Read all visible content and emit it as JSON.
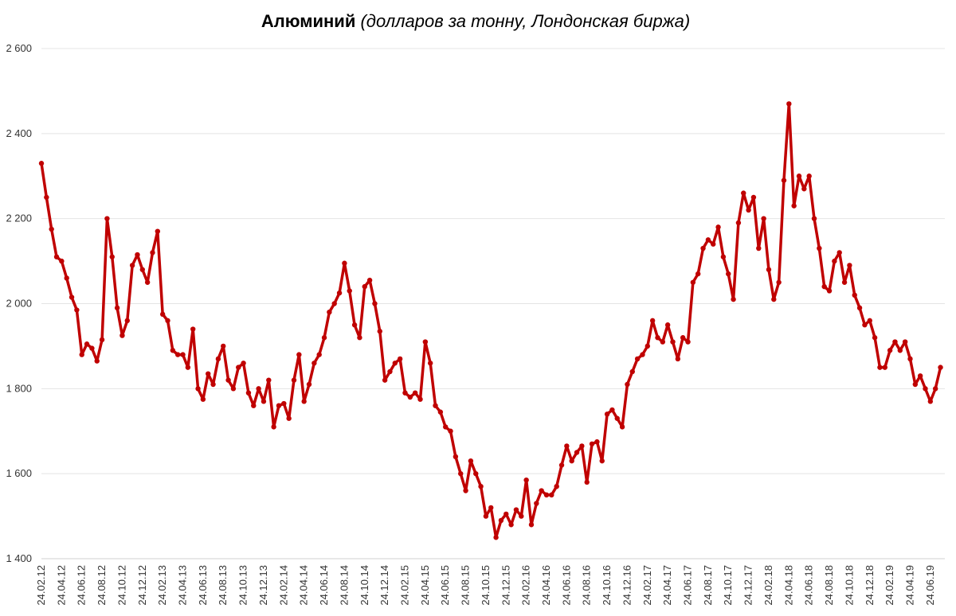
{
  "chart_data": {
    "type": "line",
    "title": "Алюминий",
    "subtitle": "(долларов за тонну, Лондонская биржа)",
    "categories": [
      "24.02.12",
      null,
      null,
      null,
      "24.04.12",
      null,
      null,
      null,
      "24.06.12",
      null,
      null,
      null,
      "24.08.12",
      null,
      null,
      null,
      "24.10.12",
      null,
      null,
      null,
      "24.12.12",
      null,
      null,
      null,
      "24.02.13",
      null,
      null,
      null,
      "24.04.13",
      null,
      null,
      null,
      "24.06.13",
      null,
      null,
      null,
      "24.08.13",
      null,
      null,
      null,
      "24.10.13",
      null,
      null,
      null,
      "24.12.13",
      null,
      null,
      null,
      "24.02.14",
      null,
      null,
      null,
      "24.04.14",
      null,
      null,
      null,
      "24.06.14",
      null,
      null,
      null,
      "24.08.14",
      null,
      null,
      null,
      "24.10.14",
      null,
      null,
      null,
      "24.12.14",
      null,
      null,
      null,
      "24.02.15",
      null,
      null,
      null,
      "24.04.15",
      null,
      null,
      null,
      "24.06.15",
      null,
      null,
      null,
      "24.08.15",
      null,
      null,
      null,
      "24.10.15",
      null,
      null,
      null,
      "24.12.15",
      null,
      null,
      null,
      "24.02.16",
      null,
      null,
      null,
      "24.04.16",
      null,
      null,
      null,
      "24.06.16",
      null,
      null,
      null,
      "24.08.16",
      null,
      null,
      null,
      "24.10.16",
      null,
      null,
      null,
      "24.12.16",
      null,
      null,
      null,
      "24.02.17",
      null,
      null,
      null,
      "24.04.17",
      null,
      null,
      null,
      "24.06.17",
      null,
      null,
      null,
      "24.08.17",
      null,
      null,
      null,
      "24.10.17",
      null,
      null,
      null,
      "24.12.17",
      null,
      null,
      null,
      "24.02.18",
      null,
      null,
      null,
      "24.04.18",
      null,
      null,
      null,
      "24.06.18",
      null,
      null,
      null,
      "24.08.18",
      null,
      null,
      null,
      "24.10.18",
      null,
      null,
      null,
      "24.12.18",
      null,
      null,
      null,
      "24.02.19",
      null,
      null,
      null,
      "24.04.19",
      null,
      null,
      null,
      "24.06.19",
      null,
      null
    ],
    "series": [
      {
        "name": "Алюминий",
        "color": "#c00000",
        "values": [
          2330,
          2250,
          2175,
          2110,
          2100,
          2060,
          2015,
          1985,
          1880,
          1905,
          1895,
          1865,
          1915,
          2200,
          2110,
          1990,
          1925,
          1960,
          2090,
          2115,
          2080,
          2050,
          2120,
          2170,
          1975,
          1960,
          1890,
          1880,
          1880,
          1850,
          1940,
          1800,
          1775,
          1835,
          1810,
          1870,
          1900,
          1820,
          1800,
          1850,
          1860,
          1790,
          1760,
          1800,
          1770,
          1820,
          1710,
          1760,
          1765,
          1730,
          1820,
          1880,
          1770,
          1810,
          1860,
          1880,
          1920,
          1980,
          2000,
          2025,
          2095,
          2030,
          1950,
          1920,
          2040,
          2055,
          2000,
          1935,
          1820,
          1840,
          1860,
          1870,
          1790,
          1780,
          1790,
          1775,
          1910,
          1860,
          1760,
          1745,
          1710,
          1700,
          1640,
          1600,
          1560,
          1630,
          1600,
          1570,
          1500,
          1520,
          1450,
          1490,
          1505,
          1480,
          1515,
          1500,
          1585,
          1480,
          1530,
          1560,
          1550,
          1550,
          1570,
          1620,
          1665,
          1630,
          1650,
          1665,
          1580,
          1670,
          1675,
          1630,
          1740,
          1750,
          1730,
          1710,
          1810,
          1840,
          1870,
          1880,
          1900,
          1960,
          1920,
          1910,
          1950,
          1910,
          1870,
          1920,
          1910,
          2050,
          2070,
          2130,
          2150,
          2140,
          2180,
          2110,
          2070,
          2010,
          2190,
          2260,
          2220,
          2250,
          2130,
          2200,
          2080,
          2010,
          2050,
          2290,
          2470,
          2230,
          2300,
          2270,
          2300,
          2200,
          2130,
          2040,
          2030,
          2100,
          2120,
          2050,
          2090,
          2020,
          1990,
          1950,
          1960,
          1920,
          1850,
          1850,
          1890,
          1910,
          1890,
          1910,
          1870,
          1810,
          1830,
          1800,
          1770,
          1800,
          1850
        ]
      }
    ],
    "ylim": [
      1400,
      2600
    ],
    "yticks": [
      {
        "value": 1400,
        "label": "1 400"
      },
      {
        "value": 1600,
        "label": "1 600"
      },
      {
        "value": 1800,
        "label": "1 800"
      },
      {
        "value": 2000,
        "label": "2 000"
      },
      {
        "value": 2200,
        "label": "2 200"
      },
      {
        "value": 2400,
        "label": "2 400"
      },
      {
        "value": 2600,
        "label": "2 600"
      }
    ],
    "grid": true
  }
}
